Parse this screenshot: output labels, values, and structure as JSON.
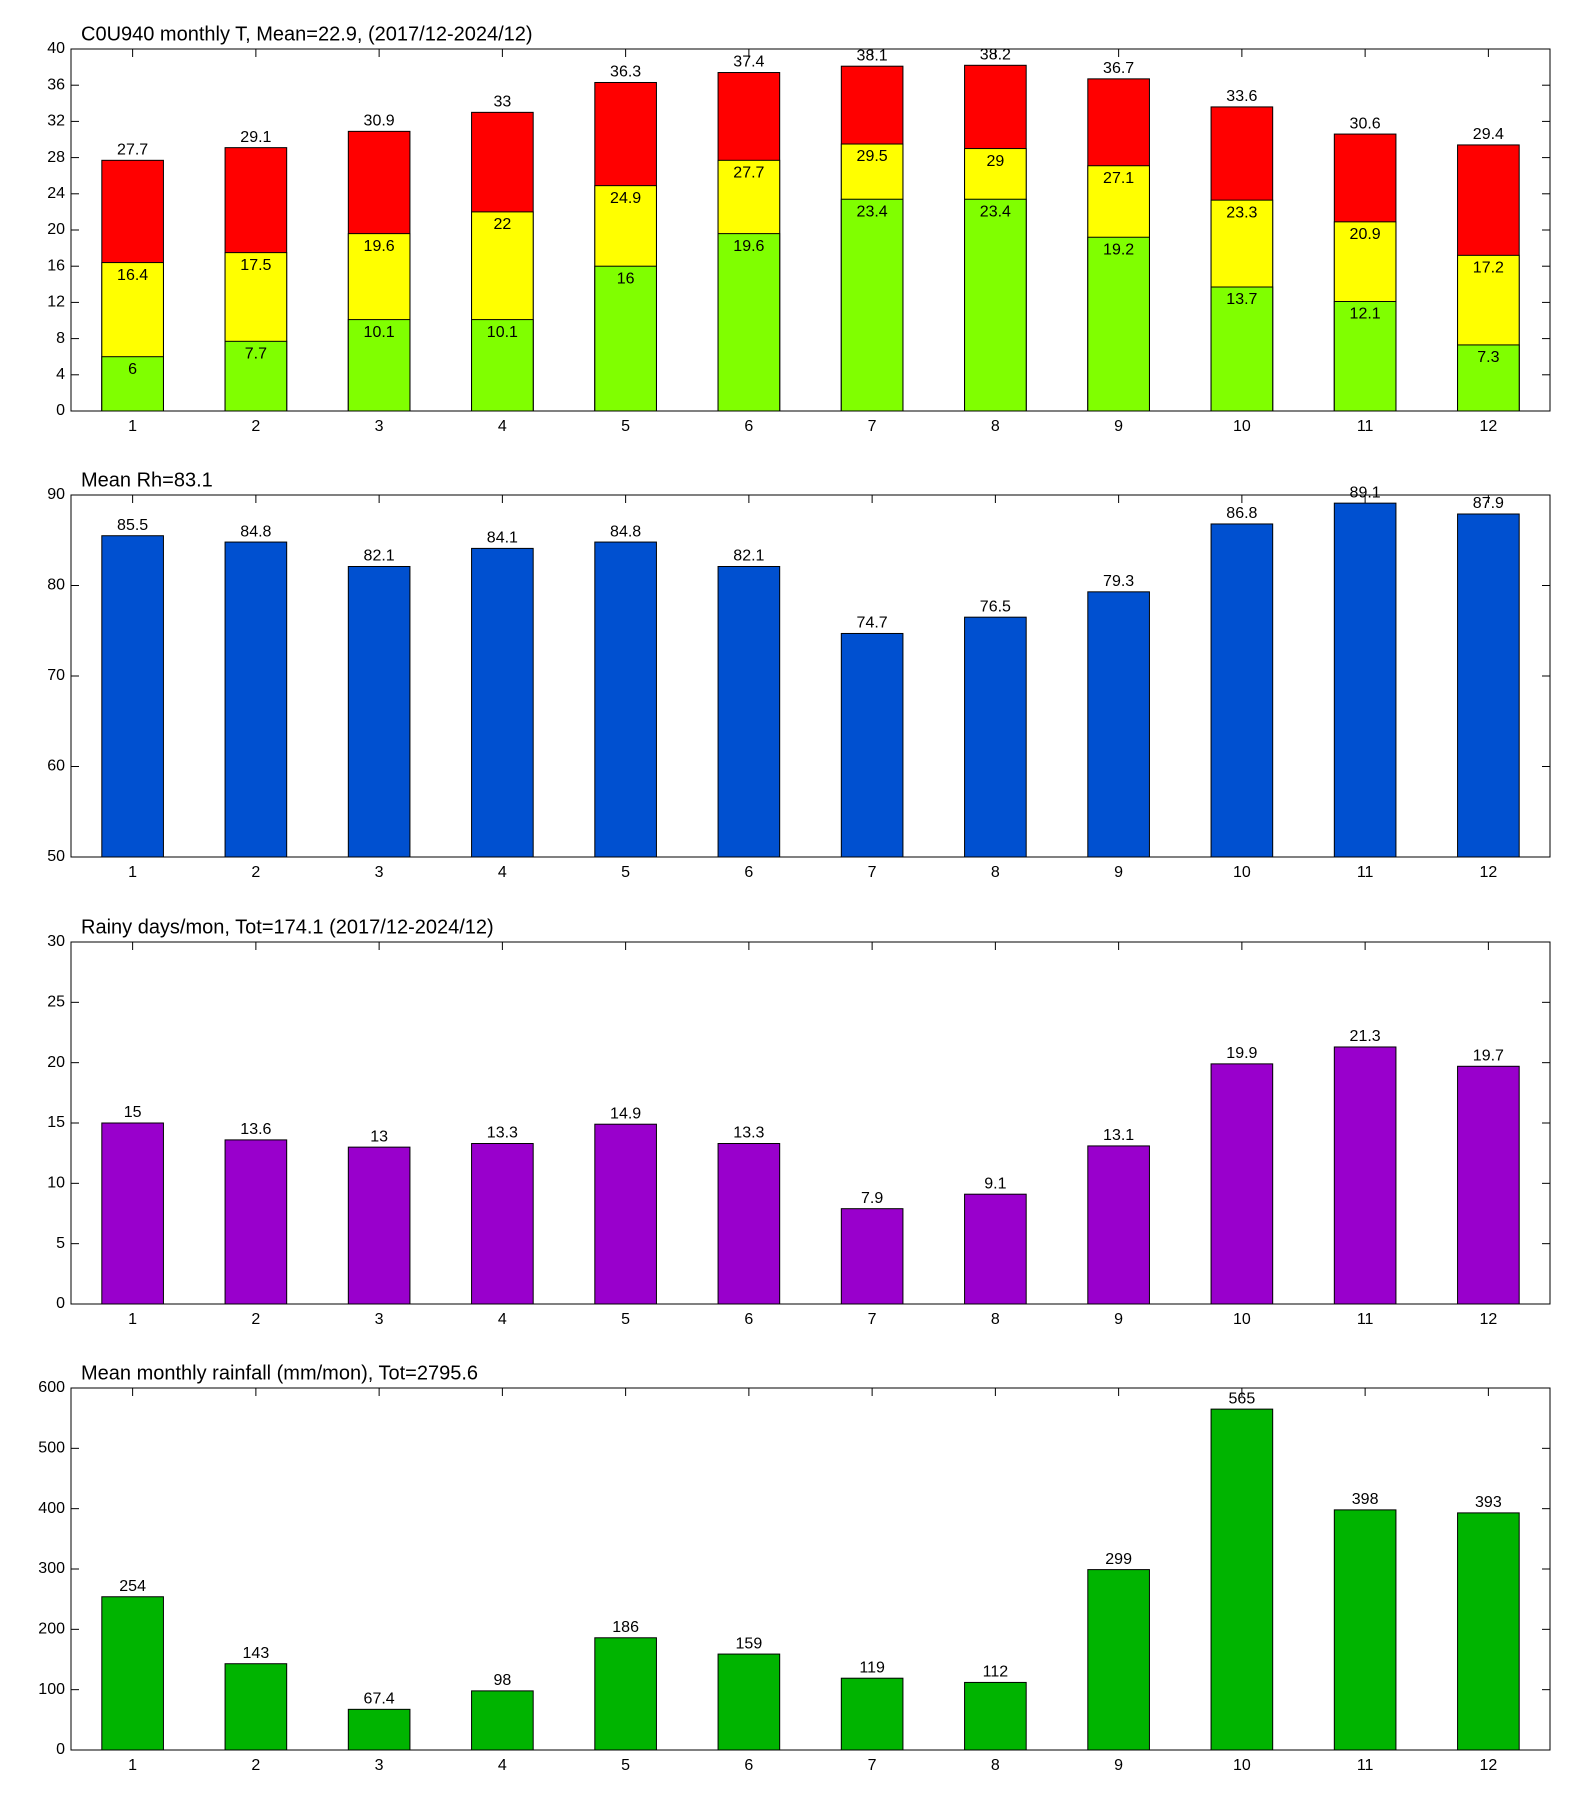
{
  "chart_data": [
    {
      "type": "bar",
      "title": "C0U940 monthly T, Mean=22.9, (2017/12-2024/12)",
      "categories": [
        "1",
        "2",
        "3",
        "4",
        "5",
        "6",
        "7",
        "8",
        "9",
        "10",
        "11",
        "12"
      ],
      "series": [
        {
          "color": "#ff0000",
          "values": [
            27.7,
            29.1,
            30.9,
            33,
            36.3,
            37.4,
            38.1,
            38.2,
            36.7,
            33.6,
            30.6,
            29.4
          ]
        },
        {
          "color": "#ffff00",
          "values": [
            16.4,
            17.5,
            19.6,
            22,
            24.9,
            27.7,
            29.5,
            29,
            27.1,
            23.3,
            20.9,
            17.2
          ]
        },
        {
          "color": "#80ff00",
          "values": [
            6,
            7.7,
            10.1,
            10.1,
            16,
            19.6,
            23.4,
            23.4,
            19.2,
            13.7,
            12.1,
            7.3
          ]
        }
      ],
      "ylim": [
        0,
        40
      ],
      "yticks": [
        0,
        4,
        8,
        12,
        16,
        20,
        24,
        28,
        32,
        36,
        40
      ]
    },
    {
      "type": "bar",
      "title": "Mean Rh=83.1",
      "categories": [
        "1",
        "2",
        "3",
        "4",
        "5",
        "6",
        "7",
        "8",
        "9",
        "10",
        "11",
        "12"
      ],
      "series": [
        {
          "color": "#0050d0",
          "values": [
            85.5,
            84.8,
            82.1,
            84.1,
            84.8,
            82.1,
            74.7,
            76.5,
            79.3,
            86.8,
            89.1,
            87.9
          ]
        }
      ],
      "ylim": [
        50,
        90
      ],
      "yticks": [
        50,
        60,
        70,
        80,
        90
      ]
    },
    {
      "type": "bar",
      "title": "Rainy days/mon, Tot=174.1 (2017/12-2024/12)",
      "categories": [
        "1",
        "2",
        "3",
        "4",
        "5",
        "6",
        "7",
        "8",
        "9",
        "10",
        "11",
        "12"
      ],
      "series": [
        {
          "color": "#9900cc",
          "values": [
            15,
            13.6,
            13,
            13.3,
            14.9,
            13.3,
            7.9,
            9.1,
            13.1,
            19.9,
            21.3,
            19.7
          ]
        }
      ],
      "ylim": [
        0,
        30
      ],
      "yticks": [
        0,
        5,
        10,
        15,
        20,
        25,
        30
      ]
    },
    {
      "type": "bar",
      "title": "Mean monthly rainfall (mm/mon), Tot=2795.6",
      "categories": [
        "1",
        "2",
        "3",
        "4",
        "5",
        "6",
        "7",
        "8",
        "9",
        "10",
        "11",
        "12"
      ],
      "series": [
        {
          "color": "#00b400",
          "values": [
            254,
            143,
            67.4,
            98,
            186,
            159,
            119,
            112,
            299,
            565,
            398,
            393
          ]
        }
      ],
      "ylim": [
        0,
        600
      ],
      "yticks": [
        0,
        100,
        200,
        300,
        400,
        500,
        600
      ]
    }
  ]
}
